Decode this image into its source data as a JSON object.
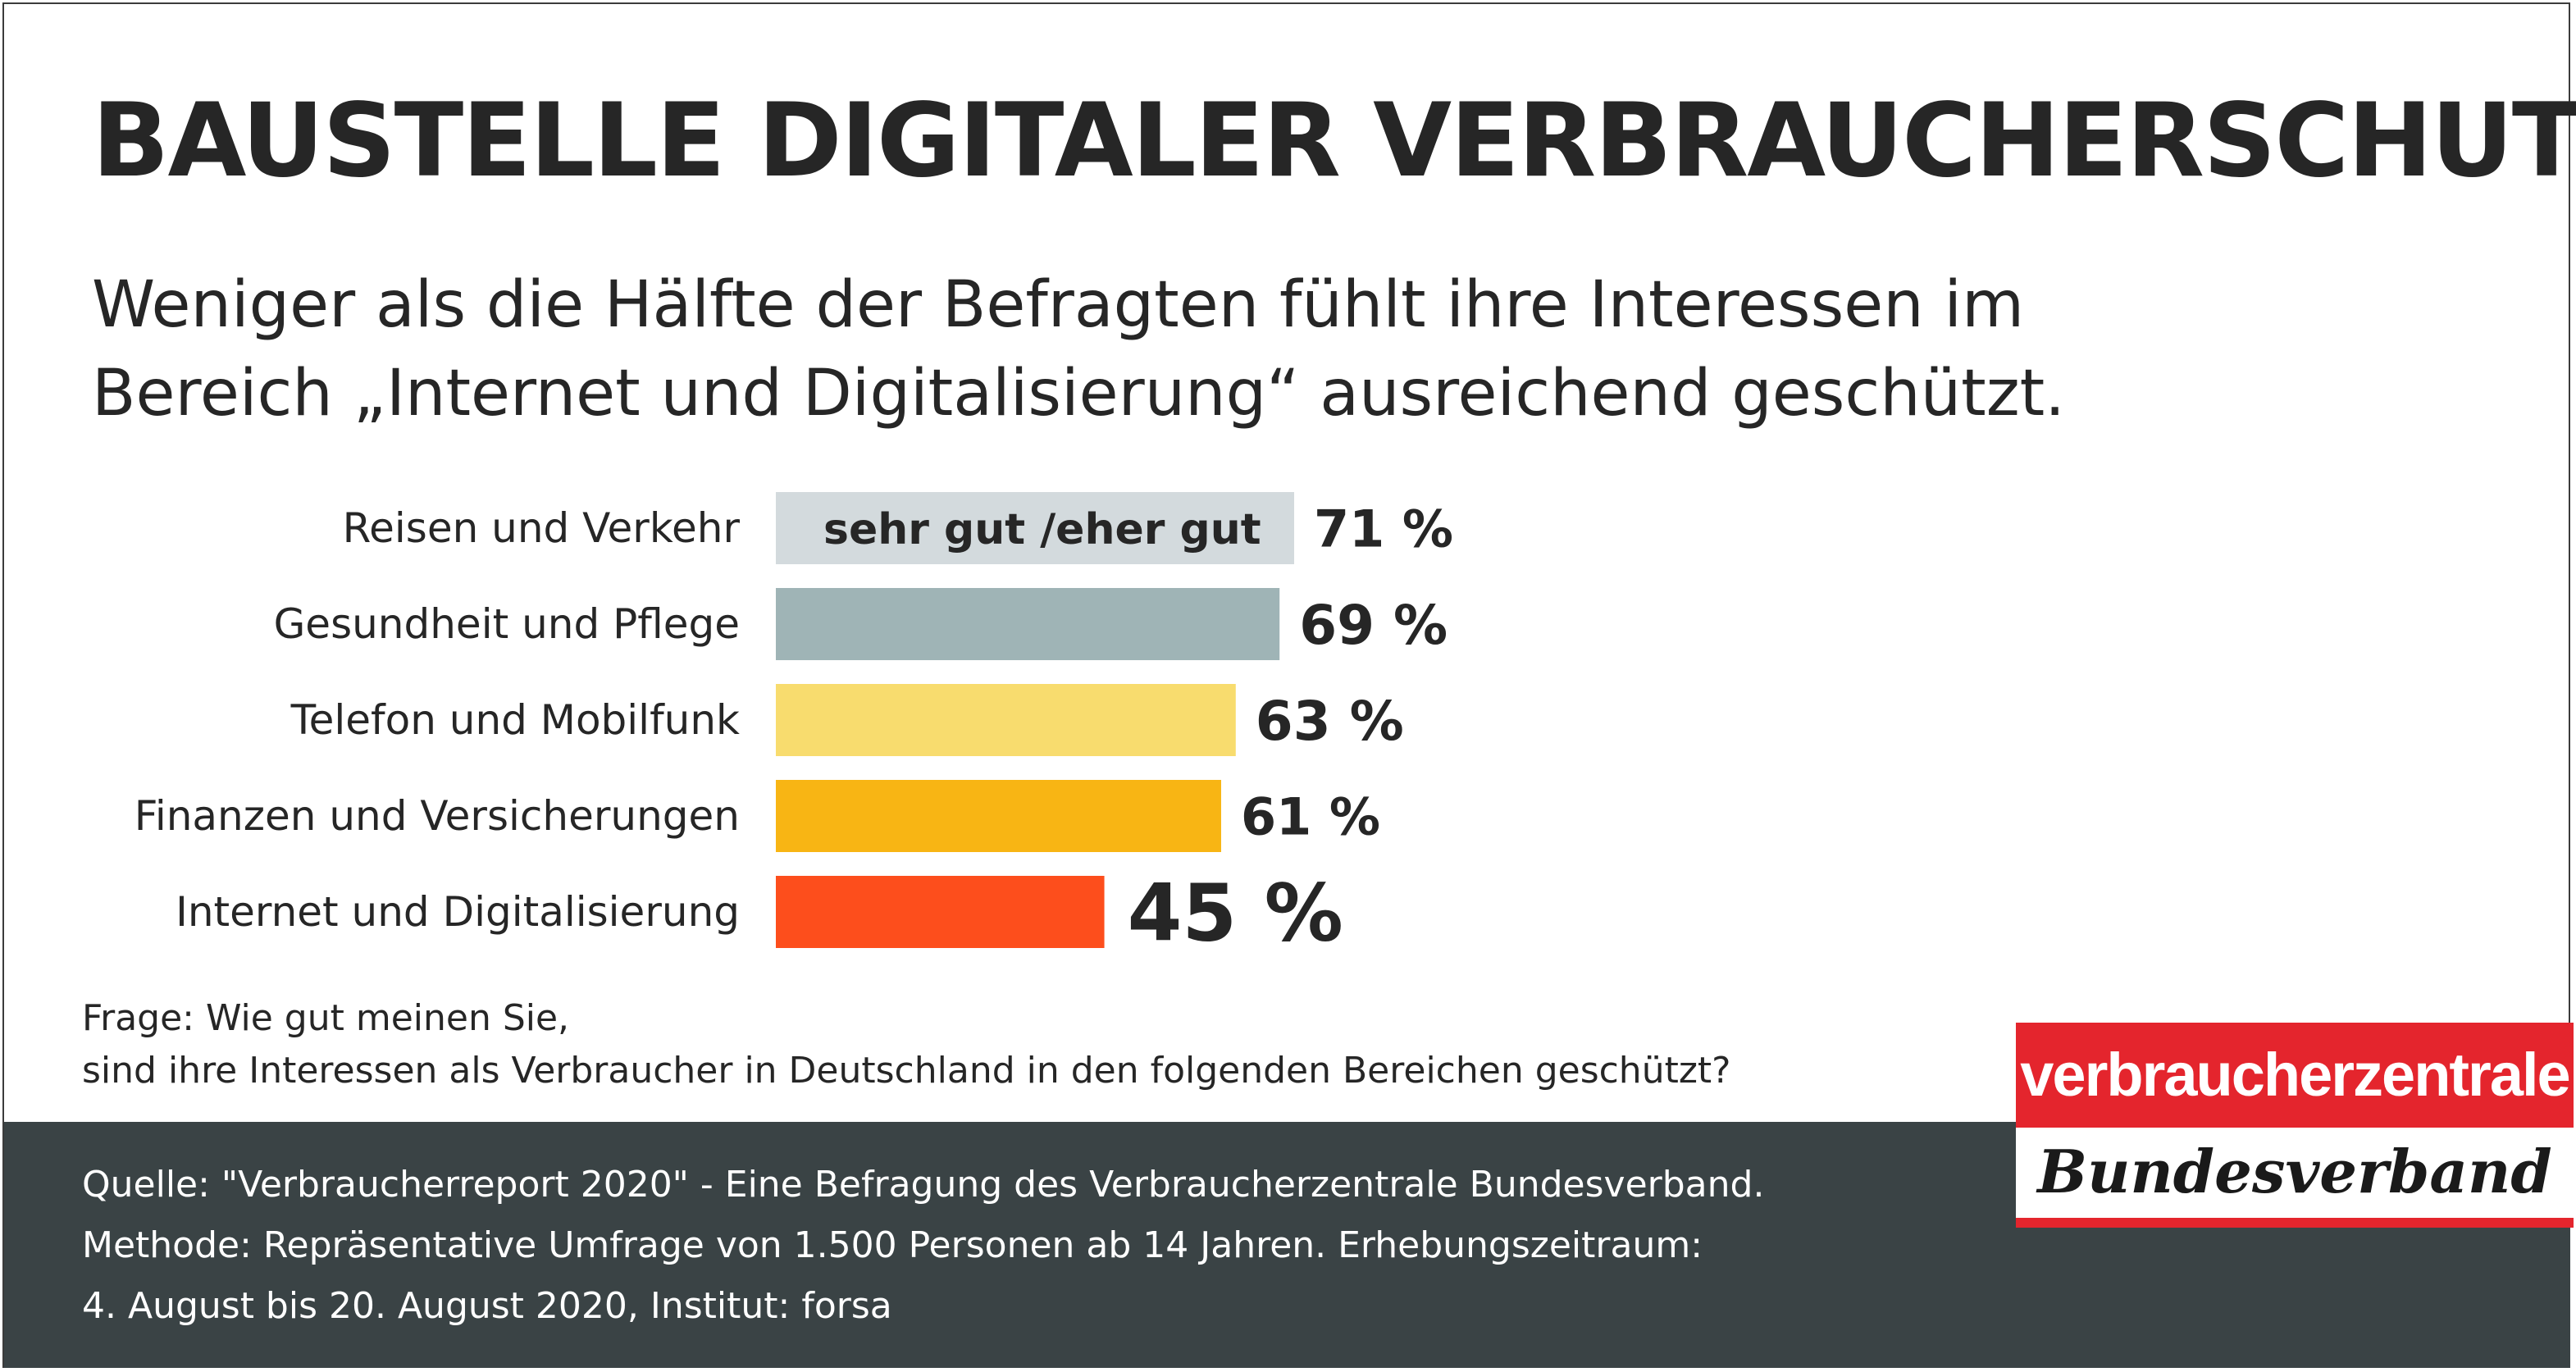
{
  "title": "BAUSTELLE DIGITALER VERBRAUCHERSCHUTZ",
  "subtitle_line1": "Weniger als die Hälfte der Befragten fühlt ihre Interessen im",
  "subtitle_line2": "Bereich „Internet und Digitalisierung“ ausreichend geschützt.",
  "chart_data": {
    "type": "bar",
    "orientation": "horizontal",
    "categories": [
      "Reisen und Verkehr",
      "Gesundheit und Pflege",
      "Telefon und Mobilfunk",
      "Finanzen und Versicherungen",
      "Internet und Digitalisierung"
    ],
    "values": [
      71,
      69,
      63,
      61,
      45
    ],
    "value_labels": [
      "71 %",
      "69 %",
      "63 %",
      "61 %",
      "45 %"
    ],
    "bar_colors": [
      "#d3dadd",
      "#9fb4b6",
      "#f8dc6e",
      "#f8b514",
      "#fd4e1c"
    ],
    "in_bar_label": "sehr gut /eher gut",
    "xlim": [
      0,
      100
    ],
    "grid": false
  },
  "question_line1": "Frage: Wie gut meinen Sie,",
  "question_line2": "sind ihre Interessen als Verbraucher in Deutschland in den folgenden Bereichen geschützt?",
  "footer": {
    "source": "Quelle: \"Verbraucherreport 2020\" - Eine Befragung des Verbraucherzentrale Bundesverband.",
    "method": "Methode: Repräsentative Umfrage von 1.500 Personen ab 14 Jahren. Erhebungszeitraum:",
    "period": "4. August bis 20. August 2020, Institut: forsa"
  },
  "logo": {
    "top": "verbraucherzentrale",
    "bottom": "Bundesverband"
  },
  "colors": {
    "footer_bg": "#3a4345",
    "logo_red": "#e4252d",
    "text": "#262626"
  }
}
